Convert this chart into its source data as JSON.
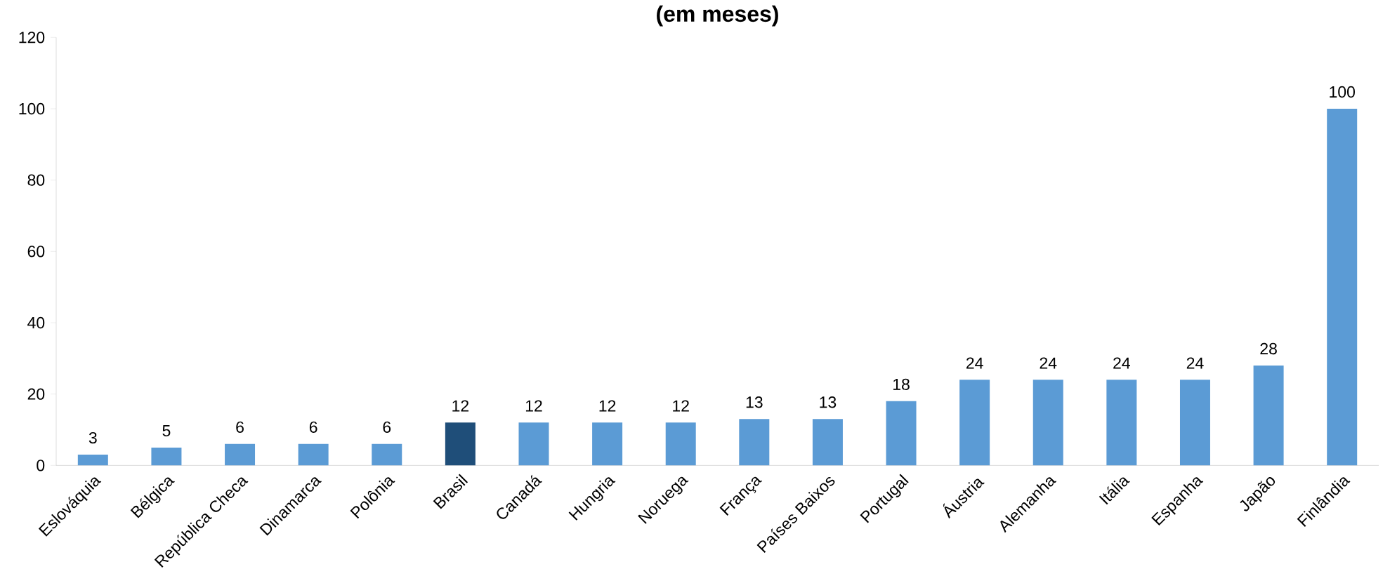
{
  "chart_data": {
    "type": "bar",
    "title": "(em meses)",
    "categories": [
      "Eslováquia",
      "Bélgica",
      "República Checa",
      "Dinamarca",
      "Polônia",
      "Brasil",
      "Canadá",
      "Hungria",
      "Noruega",
      "França",
      "Países Baixos",
      "Portugal",
      "Áustria",
      "Alemanha",
      "Itália",
      "Espanha",
      "Japão",
      "Finlândia"
    ],
    "values": [
      3,
      5,
      6,
      6,
      6,
      12,
      12,
      12,
      12,
      13,
      13,
      18,
      24,
      24,
      24,
      24,
      28,
      100
    ],
    "colors": [
      "#5b9bd5",
      "#5b9bd5",
      "#5b9bd5",
      "#5b9bd5",
      "#5b9bd5",
      "#1f4e79",
      "#5b9bd5",
      "#5b9bd5",
      "#5b9bd5",
      "#5b9bd5",
      "#5b9bd5",
      "#5b9bd5",
      "#5b9bd5",
      "#5b9bd5",
      "#5b9bd5",
      "#5b9bd5",
      "#5b9bd5",
      "#5b9bd5"
    ],
    "ylim": [
      0,
      120
    ],
    "yticks": [
      0,
      20,
      40,
      60,
      80,
      100,
      120
    ],
    "grid": false,
    "data_labels": true
  }
}
